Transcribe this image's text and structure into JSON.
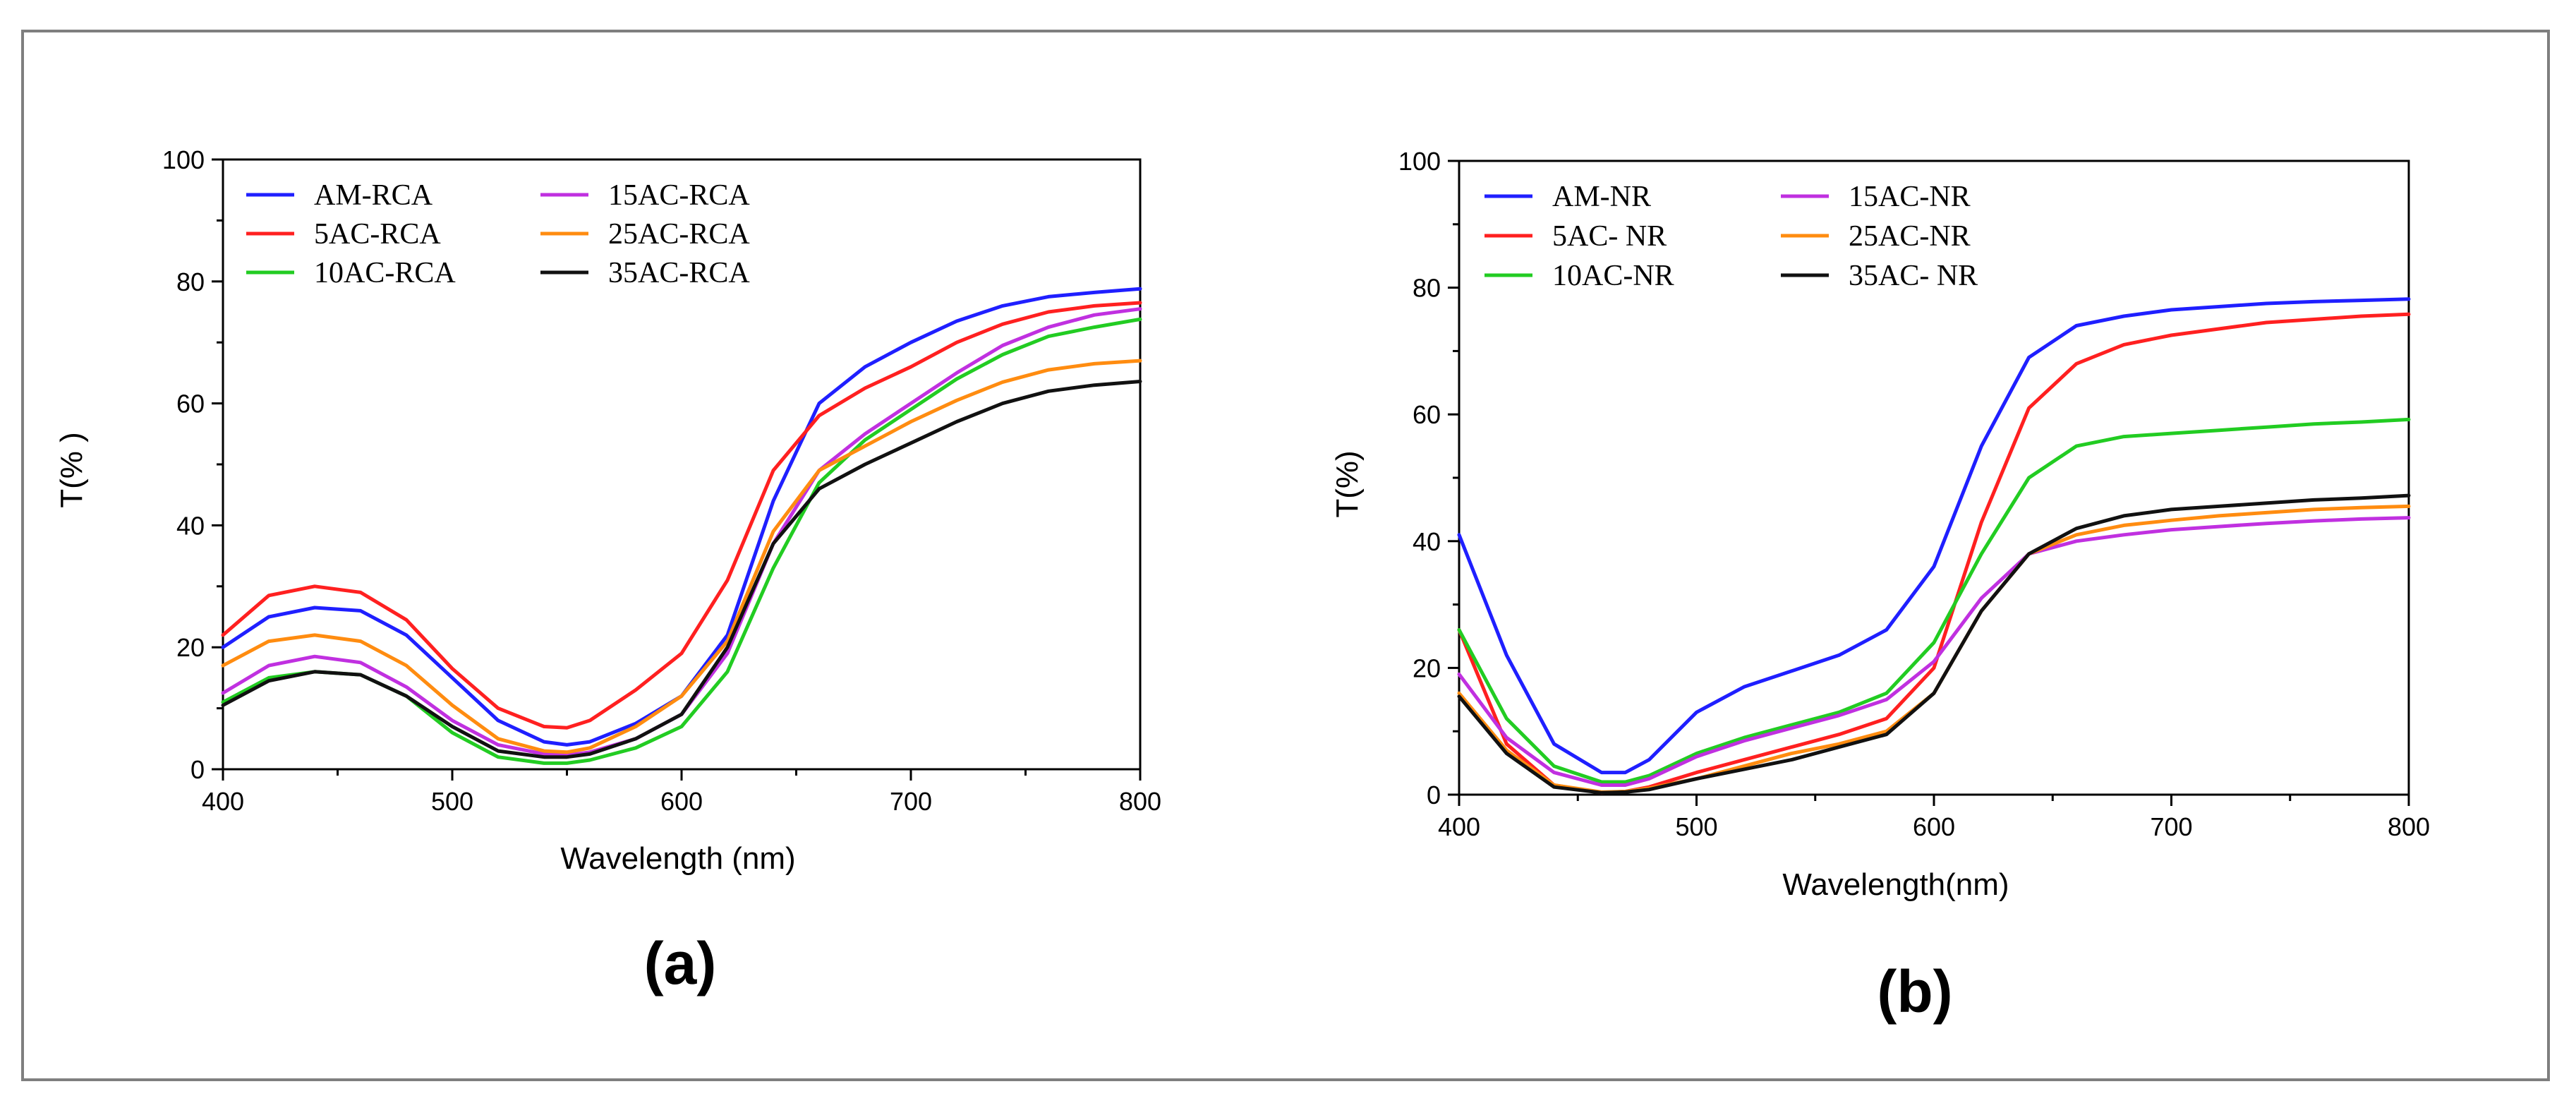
{
  "chart_data": [
    {
      "type": "line",
      "panel_label": "(a)",
      "xlabel": "Wavelength (nm)",
      "ylabel": "T(% )",
      "xlim": [
        400,
        800
      ],
      "ylim": [
        0,
        100
      ],
      "xticks": [
        400,
        500,
        600,
        700,
        800
      ],
      "yticks": [
        0,
        20,
        40,
        60,
        80,
        100
      ],
      "grid": false,
      "legend_position": "top-left",
      "series": [
        {
          "name": "AM-RCA",
          "color": "#1f1fff",
          "x": [
            400,
            420,
            440,
            460,
            480,
            500,
            520,
            540,
            550,
            560,
            580,
            600,
            620,
            640,
            660,
            680,
            700,
            720,
            740,
            760,
            780,
            800
          ],
          "y": [
            20,
            25,
            26.5,
            26,
            22,
            15,
            8,
            4.5,
            4,
            4.5,
            7.5,
            12,
            22,
            44,
            60,
            66,
            70,
            73.5,
            76,
            77.5,
            78.2,
            78.8
          ]
        },
        {
          "name": "5AC-RCA",
          "color": "#ff2020",
          "x": [
            400,
            420,
            440,
            460,
            480,
            500,
            520,
            540,
            550,
            560,
            580,
            600,
            620,
            640,
            660,
            680,
            700,
            720,
            740,
            760,
            780,
            800
          ],
          "y": [
            22,
            28.5,
            30,
            29,
            24.5,
            16.5,
            10,
            7,
            6.8,
            8,
            13,
            19,
            31,
            49,
            58,
            62.5,
            66,
            70,
            73,
            75,
            76,
            76.5
          ]
        },
        {
          "name": "10AC-RCA",
          "color": "#22cc22",
          "x": [
            400,
            420,
            440,
            460,
            480,
            500,
            520,
            540,
            550,
            560,
            580,
            600,
            620,
            640,
            660,
            680,
            700,
            720,
            740,
            760,
            780,
            800
          ],
          "y": [
            11,
            15,
            16,
            15.5,
            12,
            6,
            2,
            1,
            1,
            1.5,
            3.5,
            7,
            16,
            33,
            47,
            54,
            59,
            64,
            68,
            71,
            72.5,
            73.8
          ]
        },
        {
          "name": "15AC-RCA",
          "color": "#c030e0",
          "x": [
            400,
            420,
            440,
            460,
            480,
            500,
            520,
            540,
            550,
            560,
            580,
            600,
            620,
            640,
            660,
            680,
            700,
            720,
            740,
            760,
            780,
            800
          ],
          "y": [
            12.5,
            17,
            18.5,
            17.5,
            13.5,
            8,
            4,
            2.5,
            2.3,
            2.8,
            5,
            9,
            19,
            37,
            49,
            55,
            60,
            65,
            69.5,
            72.5,
            74.5,
            75.5
          ]
        },
        {
          "name": "25AC-RCA",
          "color": "#ff8c10",
          "x": [
            400,
            420,
            440,
            460,
            480,
            500,
            520,
            540,
            550,
            560,
            580,
            600,
            620,
            640,
            660,
            680,
            700,
            720,
            740,
            760,
            780,
            800
          ],
          "y": [
            17,
            21,
            22,
            21,
            17,
            10.5,
            5,
            3,
            2.8,
            3.5,
            7,
            12,
            21,
            39,
            49,
            53,
            57,
            60.5,
            63.5,
            65.5,
            66.5,
            67
          ]
        },
        {
          "name": "35AC-RCA",
          "color": "#111111",
          "x": [
            400,
            420,
            440,
            460,
            480,
            500,
            520,
            540,
            550,
            560,
            580,
            600,
            620,
            640,
            660,
            680,
            700,
            720,
            740,
            760,
            780,
            800
          ],
          "y": [
            10.5,
            14.5,
            16,
            15.5,
            12,
            7,
            3,
            2,
            2,
            2.5,
            5,
            9,
            20,
            37,
            46,
            50,
            53.5,
            57,
            60,
            62,
            63,
            63.6
          ]
        }
      ]
    },
    {
      "type": "line",
      "panel_label": "(b)",
      "xlabel": "Wavelength(nm)",
      "ylabel": "T(%)",
      "xlim": [
        400,
        800
      ],
      "ylim": [
        0,
        100
      ],
      "xticks": [
        400,
        500,
        600,
        700,
        800
      ],
      "yticks": [
        0,
        20,
        40,
        60,
        80,
        100
      ],
      "grid": false,
      "legend_position": "top-left",
      "series": [
        {
          "name": "AM-NR",
          "color": "#1f1fff",
          "x": [
            400,
            420,
            440,
            460,
            470,
            480,
            500,
            520,
            540,
            560,
            580,
            600,
            620,
            640,
            660,
            680,
            700,
            720,
            740,
            760,
            780,
            800
          ],
          "y": [
            41,
            22,
            8,
            3.5,
            3.5,
            5.5,
            13,
            17,
            19.5,
            22,
            26,
            36,
            55,
            69,
            74,
            75.5,
            76.5,
            77,
            77.5,
            77.8,
            78,
            78.2
          ]
        },
        {
          "name": "5AC- NR",
          "color": "#ff2020",
          "x": [
            400,
            420,
            440,
            460,
            470,
            480,
            500,
            520,
            540,
            560,
            580,
            600,
            620,
            640,
            660,
            680,
            700,
            720,
            740,
            760,
            780,
            800
          ],
          "y": [
            26,
            8,
            1.5,
            0.3,
            0.5,
            1.2,
            3.5,
            5.5,
            7.5,
            9.5,
            12,
            20,
            43,
            61,
            68,
            71,
            72.5,
            73.5,
            74.5,
            75,
            75.5,
            75.8
          ]
        },
        {
          "name": "10AC-NR",
          "color": "#22cc22",
          "x": [
            400,
            420,
            440,
            460,
            470,
            480,
            500,
            520,
            540,
            560,
            580,
            600,
            620,
            640,
            660,
            680,
            700,
            720,
            740,
            760,
            780,
            800
          ],
          "y": [
            26,
            12,
            4.5,
            2,
            2,
            3,
            6.5,
            9,
            11,
            13,
            16,
            24,
            38,
            50,
            55,
            56.5,
            57,
            57.5,
            58,
            58.5,
            58.8,
            59.2
          ]
        },
        {
          "name": "15AC-NR",
          "color": "#c030e0",
          "x": [
            400,
            420,
            440,
            460,
            470,
            480,
            500,
            520,
            540,
            560,
            580,
            600,
            620,
            640,
            660,
            680,
            700,
            720,
            740,
            760,
            780,
            800
          ],
          "y": [
            19,
            9,
            3.5,
            1.5,
            1.5,
            2.5,
            6,
            8.5,
            10.5,
            12.5,
            15,
            21,
            31,
            38,
            40,
            41,
            41.8,
            42.3,
            42.8,
            43.2,
            43.5,
            43.7
          ]
        },
        {
          "name": "25AC-NR",
          "color": "#ff8c10",
          "x": [
            400,
            420,
            440,
            460,
            470,
            480,
            500,
            520,
            540,
            560,
            580,
            600,
            620,
            640,
            660,
            680,
            700,
            720,
            740,
            760,
            780,
            800
          ],
          "y": [
            16,
            7,
            1.5,
            0.4,
            0.5,
            1,
            2.5,
            4.5,
            6.5,
            8,
            10,
            16,
            29,
            38,
            41,
            42.5,
            43.3,
            44,
            44.5,
            45,
            45.3,
            45.5
          ]
        },
        {
          "name": "35AC- NR",
          "color": "#111111",
          "x": [
            400,
            420,
            440,
            460,
            470,
            480,
            500,
            520,
            540,
            560,
            580,
            600,
            620,
            640,
            660,
            680,
            700,
            720,
            740,
            760,
            780,
            800
          ],
          "y": [
            15.5,
            6.5,
            1.2,
            0.3,
            0.4,
            0.8,
            2.5,
            4,
            5.5,
            7.5,
            9.5,
            16,
            29,
            38,
            42,
            44,
            45,
            45.5,
            46,
            46.5,
            46.8,
            47.2
          ]
        }
      ]
    }
  ]
}
